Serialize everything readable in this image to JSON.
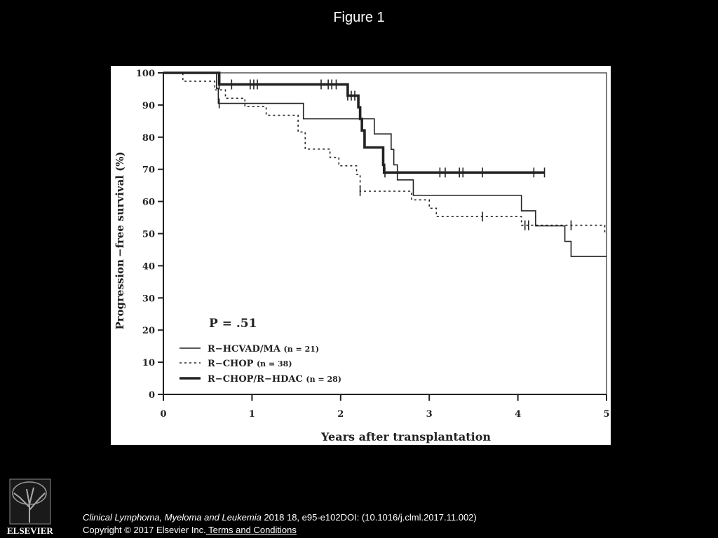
{
  "figure_title": "Figure 1",
  "footer": {
    "journal": "Clinical Lymphoma, Myeloma and Leukemia",
    "citation": " 2018 18, e95-e102DOI: (10.1016/j.clml.2017.11.002)",
    "copyright": "Copyright © 2017 Elsevier Inc.",
    "terms_link": " Terms and Conditions",
    "logo_text": "ELSEVIER"
  },
  "chart_data": {
    "type": "line",
    "step": true,
    "title": "",
    "xlabel": "Years after transplantation",
    "ylabel": "Progression −free survival (%)",
    "xlim": [
      0,
      5
    ],
    "ylim": [
      0,
      100
    ],
    "xticks": [
      "0",
      "1",
      "2",
      "3",
      "4",
      "5"
    ],
    "yticks": [
      "0",
      "10",
      "20",
      "30",
      "40",
      "50",
      "60",
      "70",
      "80",
      "90",
      "100"
    ],
    "annotation": "P = .51",
    "legend_position": "bottom-left",
    "series": [
      {
        "name": "R−HCVAD/MA",
        "n_label": "(n = 21)",
        "style": "thin-solid",
        "points": [
          [
            0,
            100
          ],
          [
            0.6,
            95.2
          ],
          [
            0.62,
            90.5
          ],
          [
            1.58,
            85.7
          ],
          [
            2.38,
            81
          ],
          [
            2.57,
            76.2
          ],
          [
            2.6,
            71.4
          ],
          [
            2.64,
            66.7
          ],
          [
            2.82,
            61.9
          ],
          [
            4.04,
            57.1
          ],
          [
            4.2,
            52.4
          ],
          [
            4.53,
            47.6
          ],
          [
            4.6,
            42.9
          ],
          [
            5.0,
            42.9
          ]
        ],
        "censored": [
          0.63
        ]
      },
      {
        "name": "R−CHOP",
        "n_label": "(n = 38)",
        "style": "dotted",
        "points": [
          [
            0,
            100
          ],
          [
            0.22,
            97.4
          ],
          [
            0.58,
            94.7
          ],
          [
            0.7,
            92.1
          ],
          [
            0.92,
            89.5
          ],
          [
            1.16,
            86.8
          ],
          [
            1.52,
            81.6
          ],
          [
            1.6,
            76.3
          ],
          [
            1.88,
            73.7
          ],
          [
            1.98,
            71.1
          ],
          [
            2.18,
            68.4
          ],
          [
            2.22,
            63.2
          ],
          [
            2.8,
            60.5
          ],
          [
            3.0,
            57.9
          ],
          [
            3.08,
            55.3
          ],
          [
            4.04,
            52.6
          ],
          [
            4.98,
            50.0
          ],
          [
            5.0,
            50.0
          ]
        ],
        "censored": [
          2.22,
          3.6,
          4.08,
          4.12,
          4.6
        ]
      },
      {
        "name": "R−CHOP/R−HDAC",
        "n_label": "(n = 28)",
        "style": "thick-solid",
        "points": [
          [
            0,
            100
          ],
          [
            0.63,
            96.4
          ],
          [
            2.08,
            92.9
          ],
          [
            2.2,
            89.3
          ],
          [
            2.22,
            85.7
          ],
          [
            2.24,
            82.1
          ],
          [
            2.27,
            76.8
          ],
          [
            2.48,
            71.4
          ],
          [
            2.49,
            69.0
          ],
          [
            4.3,
            69.0
          ]
        ],
        "censored": [
          0.63,
          0.77,
          0.98,
          1.02,
          1.06,
          1.78,
          1.86,
          1.9,
          1.95,
          2.08,
          2.12,
          2.16,
          2.5,
          3.12,
          3.18,
          3.34,
          3.38,
          3.6,
          4.18,
          4.3
        ]
      }
    ]
  }
}
